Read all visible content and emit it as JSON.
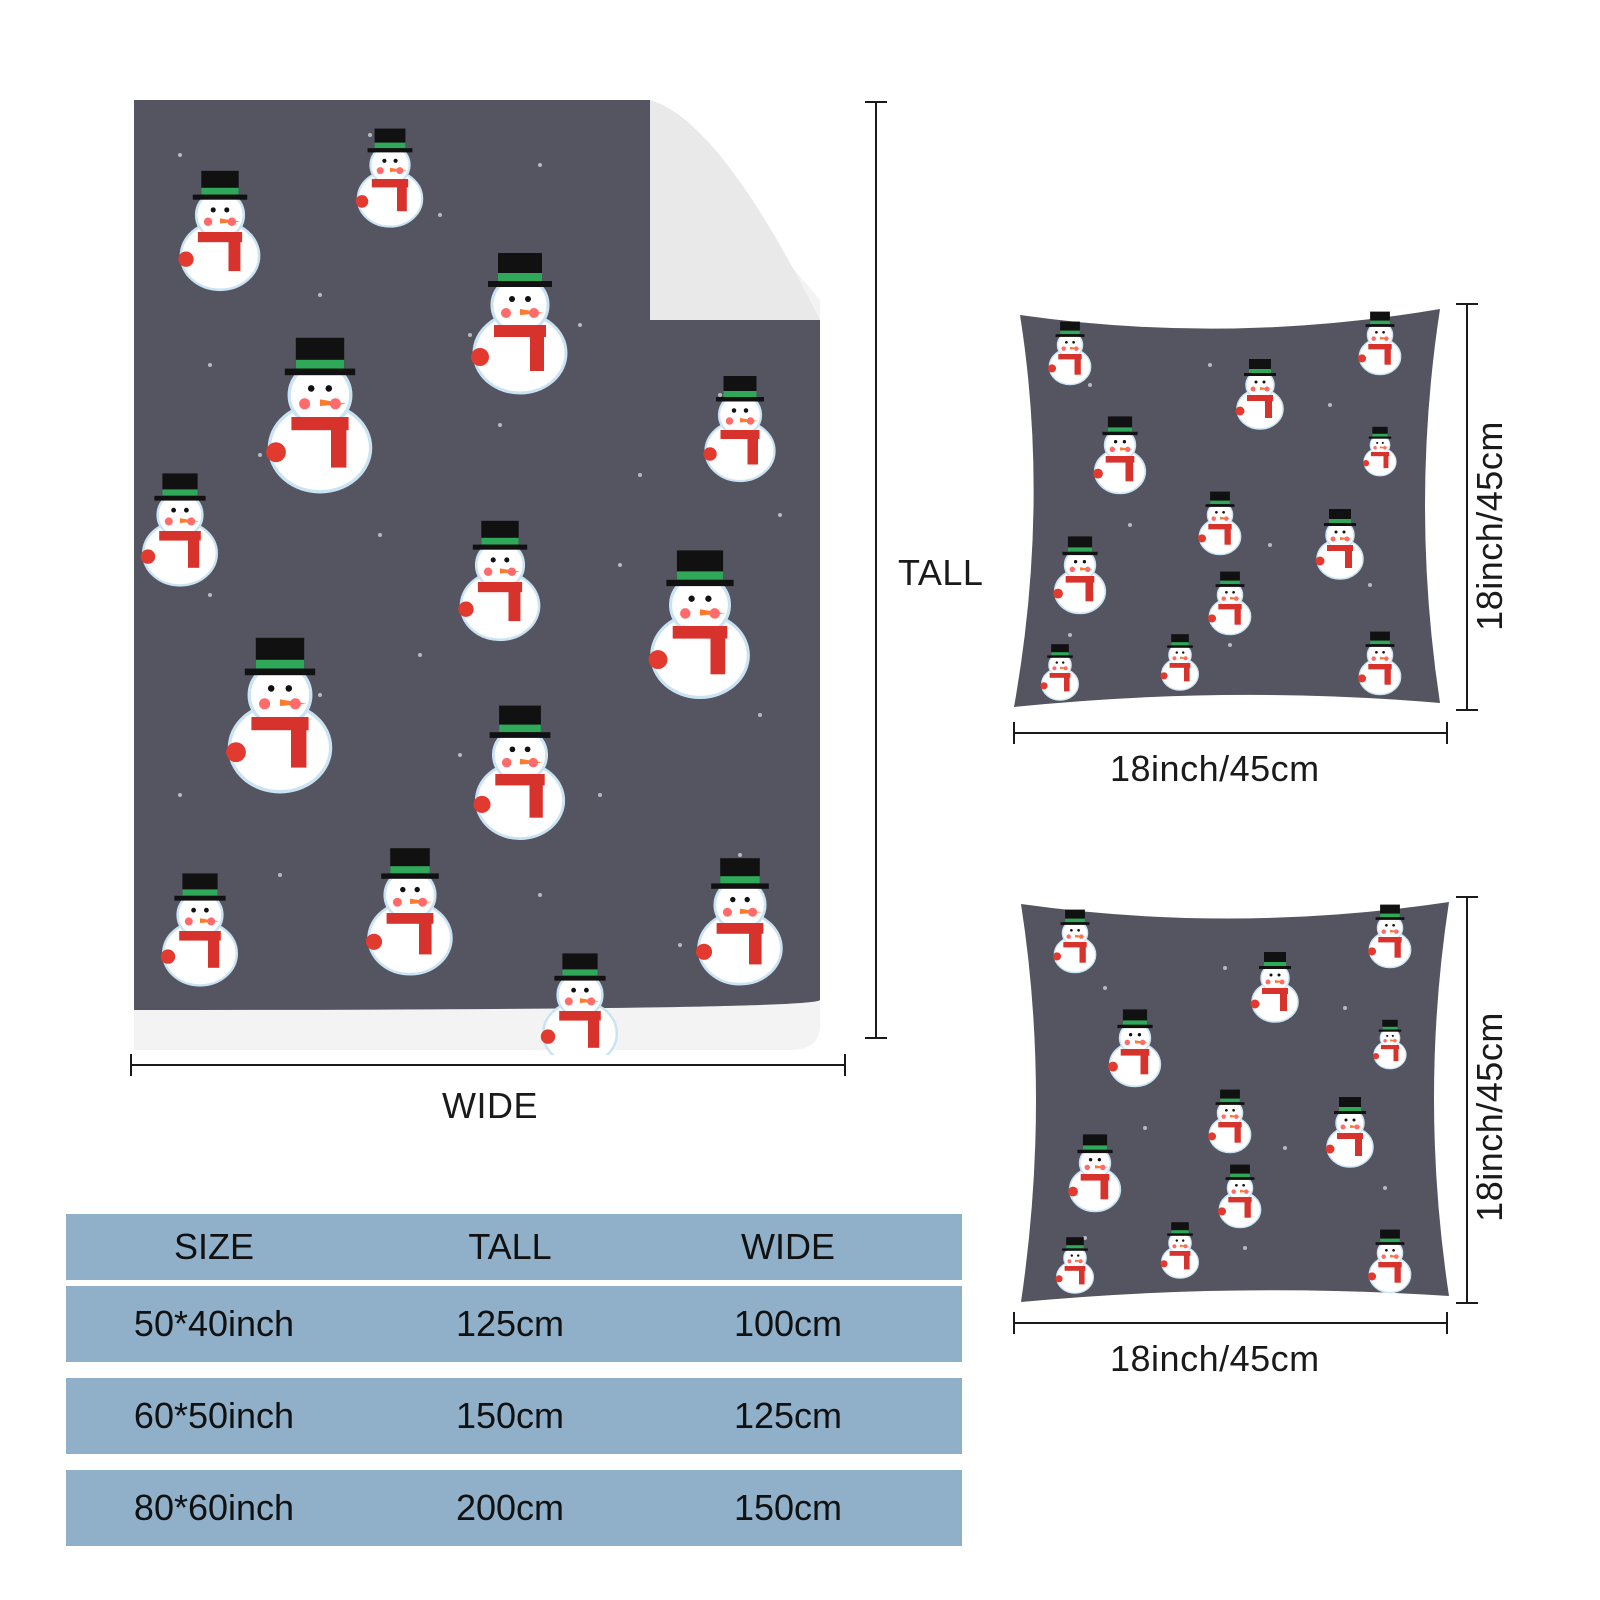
{
  "blanket": {
    "tall_label": "TALL",
    "wide_label": "WIDE",
    "pattern_color": "#545560",
    "fleece_color": "#f3f3f3"
  },
  "pillows": [
    {
      "height_label": "18inch/45cm",
      "width_label": "18inch/45cm"
    },
    {
      "height_label": "18inch/45cm",
      "width_label": "18inch/45cm"
    }
  ],
  "size_table": {
    "headers": [
      "SIZE",
      "TALL",
      "WIDE"
    ],
    "rows": [
      [
        "50*40inch",
        "125cm",
        "100cm"
      ],
      [
        "60*50inch",
        "150cm",
        "125cm"
      ],
      [
        "80*60inch",
        "200cm",
        "150cm"
      ]
    ],
    "row_color": "#8fb0c8"
  }
}
